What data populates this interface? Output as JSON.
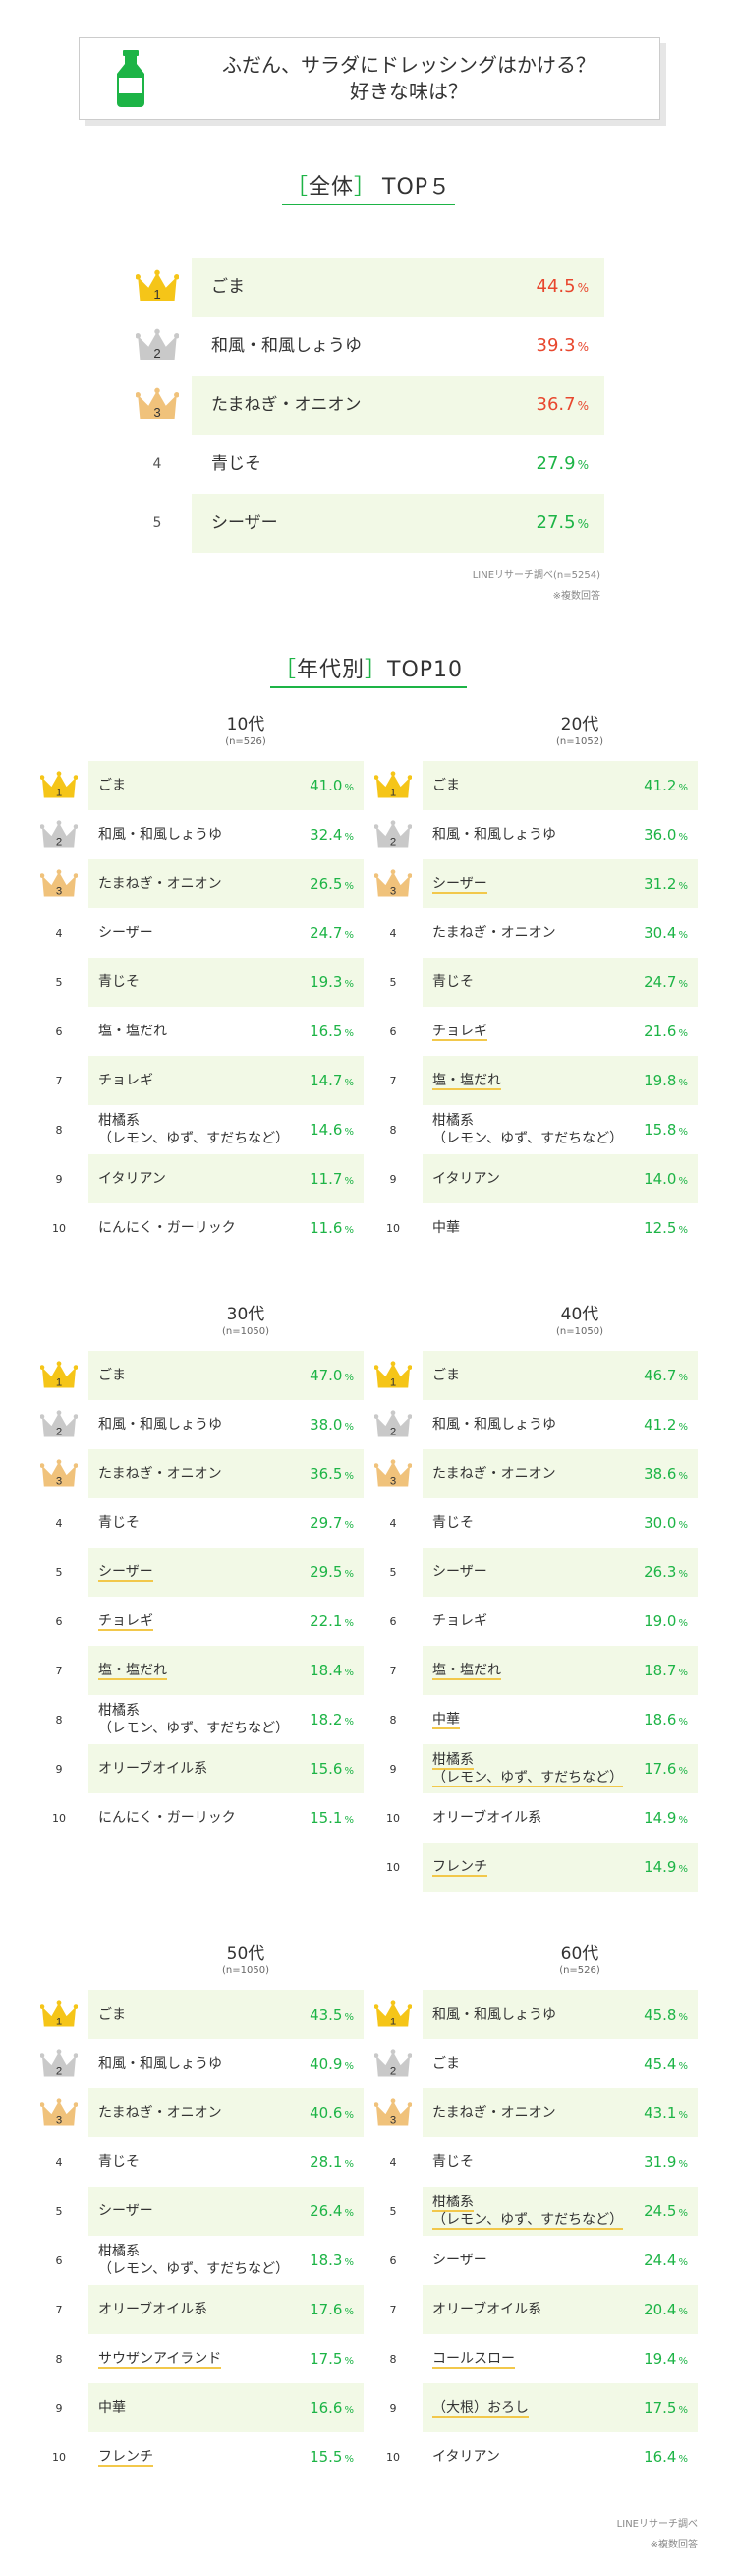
{
  "header": {
    "question_line1": "ふだん、サラダにドレッシングはかける？",
    "question_line2": "好きな味は？"
  },
  "overall": {
    "title_bracket_open": "［",
    "title_word": "全体",
    "title_bracket_close": "］",
    "title_suffix": "TOP５",
    "rows": [
      {
        "rank": "1",
        "name": "ごま",
        "pct": "44.5",
        "unit": "%",
        "red": true
      },
      {
        "rank": "2",
        "name": "和風・和風しょうゆ",
        "pct": "39.3",
        "unit": "%",
        "red": true
      },
      {
        "rank": "3",
        "name": "たまねぎ・オニオン",
        "pct": "36.7",
        "unit": "%",
        "red": true
      },
      {
        "rank": "4",
        "name": "青じそ",
        "pct": "27.9",
        "unit": "%",
        "red": false
      },
      {
        "rank": "5",
        "name": "シーザー",
        "pct": "27.5",
        "unit": "%",
        "red": false
      }
    ],
    "note1": "LINEリサーチ調べ(n=5254)",
    "note2": "※複数回答"
  },
  "by_age": {
    "title_bracket_open": "［",
    "title_word": "年代別",
    "title_bracket_close": "］",
    "title_suffix": "TOP10",
    "groups": [
      {
        "title": "10代",
        "n": "(n=526)",
        "rows": [
          {
            "rank": "1",
            "name": "ごま",
            "pct": "41.0"
          },
          {
            "rank": "2",
            "name": "和風・和風しょうゆ",
            "pct": "32.4"
          },
          {
            "rank": "3",
            "name": "たまねぎ・オニオン",
            "pct": "26.5"
          },
          {
            "rank": "4",
            "name": "シーザー",
            "pct": "24.7"
          },
          {
            "rank": "5",
            "name": "青じそ",
            "pct": "19.3"
          },
          {
            "rank": "6",
            "name": "塩・塩だれ",
            "pct": "16.5"
          },
          {
            "rank": "7",
            "name": "チョレギ",
            "pct": "14.7"
          },
          {
            "rank": "8",
            "name": "柑橘系",
            "name2": "（レモン、ゆず、すだちなど）",
            "pct": "14.6"
          },
          {
            "rank": "9",
            "name": "イタリアン",
            "pct": "11.7"
          },
          {
            "rank": "10",
            "name": "にんにく・ガーリック",
            "pct": "11.6"
          }
        ]
      },
      {
        "title": "20代",
        "n": "(n=1052)",
        "rows": [
          {
            "rank": "1",
            "name": "ごま",
            "pct": "41.2"
          },
          {
            "rank": "2",
            "name": "和風・和風しょうゆ",
            "pct": "36.0"
          },
          {
            "rank": "3",
            "name": "シーザー",
            "pct": "31.2",
            "u": true
          },
          {
            "rank": "4",
            "name": "たまねぎ・オニオン",
            "pct": "30.4"
          },
          {
            "rank": "5",
            "name": "青じそ",
            "pct": "24.7"
          },
          {
            "rank": "6",
            "name": "チョレギ",
            "pct": "21.6",
            "u": true
          },
          {
            "rank": "7",
            "name": "塩・塩だれ",
            "pct": "19.8",
            "u": true
          },
          {
            "rank": "8",
            "name": "柑橘系",
            "name2": "（レモン、ゆず、すだちなど）",
            "pct": "15.8"
          },
          {
            "rank": "9",
            "name": "イタリアン",
            "pct": "14.0"
          },
          {
            "rank": "10",
            "name": "中華",
            "pct": "12.5"
          }
        ]
      },
      {
        "title": "30代",
        "n": "(n=1050)",
        "rows": [
          {
            "rank": "1",
            "name": "ごま",
            "pct": "47.0"
          },
          {
            "rank": "2",
            "name": "和風・和風しょうゆ",
            "pct": "38.0"
          },
          {
            "rank": "3",
            "name": "たまねぎ・オニオン",
            "pct": "36.5"
          },
          {
            "rank": "4",
            "name": "青じそ",
            "pct": "29.7"
          },
          {
            "rank": "5",
            "name": "シーザー",
            "pct": "29.5",
            "u": true
          },
          {
            "rank": "6",
            "name": "チョレギ",
            "pct": "22.1",
            "u": true
          },
          {
            "rank": "7",
            "name": "塩・塩だれ",
            "pct": "18.4",
            "u": true
          },
          {
            "rank": "8",
            "name": "柑橘系",
            "name2": "（レモン、ゆず、すだちなど）",
            "pct": "18.2"
          },
          {
            "rank": "9",
            "name": "オリーブオイル系",
            "pct": "15.6"
          },
          {
            "rank": "10",
            "name": "にんにく・ガーリック",
            "pct": "15.1"
          }
        ]
      },
      {
        "title": "40代",
        "n": "(n=1050)",
        "rows": [
          {
            "rank": "1",
            "name": "ごま",
            "pct": "46.7"
          },
          {
            "rank": "2",
            "name": "和風・和風しょうゆ",
            "pct": "41.2"
          },
          {
            "rank": "3",
            "name": "たまねぎ・オニオン",
            "pct": "38.6"
          },
          {
            "rank": "4",
            "name": "青じそ",
            "pct": "30.0"
          },
          {
            "rank": "5",
            "name": "シーザー",
            "pct": "26.3"
          },
          {
            "rank": "6",
            "name": "チョレギ",
            "pct": "19.0"
          },
          {
            "rank": "7",
            "name": "塩・塩だれ",
            "pct": "18.7",
            "u": true
          },
          {
            "rank": "8",
            "name": "中華",
            "pct": "18.6",
            "u": true
          },
          {
            "rank": "9",
            "name": "柑橘系",
            "name2": "（レモン、ゆず、すだちなど）",
            "pct": "17.6",
            "u": true
          },
          {
            "rank": "10",
            "name": "オリーブオイル系",
            "pct": "14.9"
          },
          {
            "rank": "10",
            "name": "フレンチ",
            "pct": "14.9",
            "u": true
          }
        ]
      },
      {
        "title": "50代",
        "n": "(n=1050)",
        "rows": [
          {
            "rank": "1",
            "name": "ごま",
            "pct": "43.5"
          },
          {
            "rank": "2",
            "name": "和風・和風しょうゆ",
            "pct": "40.9"
          },
          {
            "rank": "3",
            "name": "たまねぎ・オニオン",
            "pct": "40.6"
          },
          {
            "rank": "4",
            "name": "青じそ",
            "pct": "28.1"
          },
          {
            "rank": "5",
            "name": "シーザー",
            "pct": "26.4"
          },
          {
            "rank": "6",
            "name": "柑橘系",
            "name2": "（レモン、ゆず、すだちなど）",
            "pct": "18.3"
          },
          {
            "rank": "7",
            "name": "オリーブオイル系",
            "pct": "17.6"
          },
          {
            "rank": "8",
            "name": "サウザンアイランド",
            "pct": "17.5",
            "u": true
          },
          {
            "rank": "9",
            "name": "中華",
            "pct": "16.6"
          },
          {
            "rank": "10",
            "name": "フレンチ",
            "pct": "15.5",
            "u": true
          }
        ]
      },
      {
        "title": "60代",
        "n": "(n=526)",
        "rows": [
          {
            "rank": "1",
            "name": "和風・和風しょうゆ",
            "pct": "45.8"
          },
          {
            "rank": "2",
            "name": "ごま",
            "pct": "45.4"
          },
          {
            "rank": "3",
            "name": "たまねぎ・オニオン",
            "pct": "43.1"
          },
          {
            "rank": "4",
            "name": "青じそ",
            "pct": "31.9"
          },
          {
            "rank": "5",
            "name": "柑橘系",
            "name2": "（レモン、ゆず、すだちなど）",
            "pct": "24.5",
            "u": true
          },
          {
            "rank": "6",
            "name": "シーザー",
            "pct": "24.4"
          },
          {
            "rank": "7",
            "name": "オリーブオイル系",
            "pct": "20.4"
          },
          {
            "rank": "8",
            "name": "コールスロー",
            "pct": "19.4",
            "u": true
          },
          {
            "rank": "9",
            "name": "（大根）おろし",
            "pct": "17.5",
            "u": true
          },
          {
            "rank": "10",
            "name": "イタリアン",
            "pct": "16.4"
          }
        ]
      }
    ],
    "unit": "%",
    "note1": "LINEリサーチ調べ",
    "note2": "※複数回答"
  },
  "colors": {
    "green": "#1db446",
    "red": "#e8472e",
    "highlight": "#f2f9e6",
    "gold": "#f5c518",
    "silver": "#c9c9c9",
    "bronze": "#f0c27b"
  }
}
